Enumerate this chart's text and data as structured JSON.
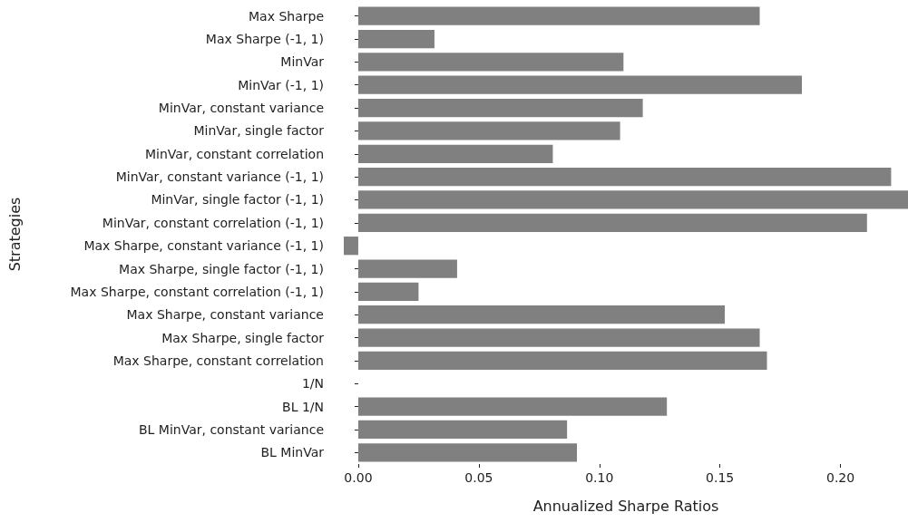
{
  "chart_data": {
    "type": "bar",
    "orientation": "horizontal",
    "xlabel": "Annualized Sharpe Ratios",
    "ylabel": "Strategies",
    "categories": [
      "Max Sharpe",
      "Max Sharpe (-1, 1)",
      "MinVar",
      "MinVar (-1, 1)",
      "MinVar, constant variance",
      "MinVar, single factor",
      "MinVar, constant correlation",
      "MinVar, constant variance (-1, 1)",
      "MinVar, single factor (-1, 1)",
      "MinVar, constant correlation (-1, 1)",
      "Max Sharpe, constant variance (-1, 1)",
      "Max Sharpe, single factor (-1, 1)",
      "Max Sharpe, constant correlation (-1, 1)",
      "Max Sharpe, constant variance",
      "Max Sharpe, single factor",
      "Max Sharpe, constant correlation",
      "1/N",
      "BL 1/N",
      "BL MinVar, constant variance",
      "BL MinVar"
    ],
    "values": [
      0.1665,
      0.0316,
      0.11,
      0.184,
      0.118,
      0.1086,
      0.0807,
      0.221,
      0.228,
      0.211,
      -0.006,
      0.041,
      0.025,
      0.152,
      0.1665,
      0.1695,
      0,
      0.128,
      0.0866,
      0.0907
    ],
    "color": "#808080",
    "xlim": [
      -0.006,
      0.228
    ],
    "xticks": [
      {
        "value": 0,
        "label": "0.00"
      },
      {
        "value": 0.05,
        "label": "0.05"
      },
      {
        "value": 0.1,
        "label": "0.10"
      },
      {
        "value": 0.15,
        "label": "0.15"
      },
      {
        "value": 0.2,
        "label": "0.20"
      }
    ],
    "grid": false
  }
}
